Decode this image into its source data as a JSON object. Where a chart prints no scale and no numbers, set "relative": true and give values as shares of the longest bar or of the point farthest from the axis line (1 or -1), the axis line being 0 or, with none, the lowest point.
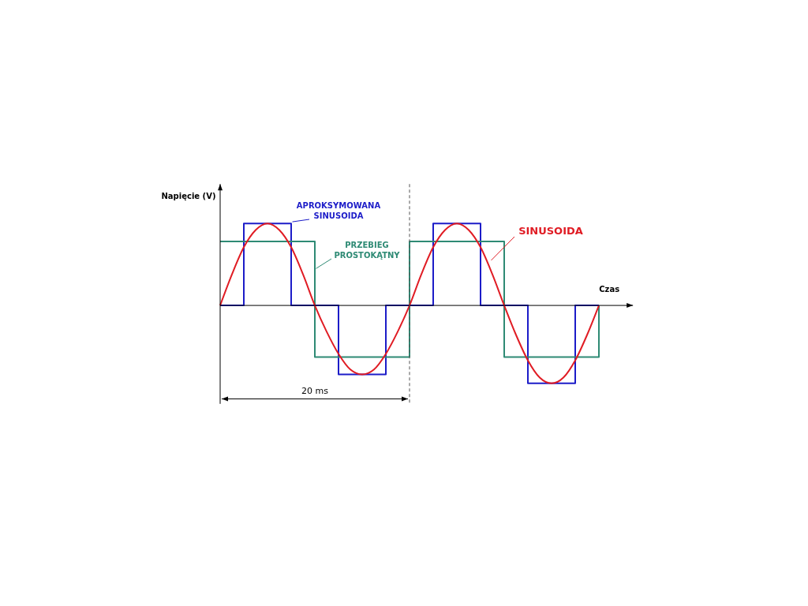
{
  "chart_data": {
    "type": "line",
    "relative": true,
    "xlabel": "Czas",
    "ylabel": "Napięcie (V)",
    "tick_labels": false,
    "grid": false,
    "legend": false,
    "marker": "none",
    "categories": [
      null,
      null,
      null,
      null,
      null,
      null,
      null,
      null,
      null,
      null,
      null,
      null,
      null,
      null,
      null,
      null,
      null,
      null,
      null,
      null,
      null,
      null,
      null,
      null,
      null,
      null,
      null,
      null,
      null,
      null,
      null,
      null,
      null
    ],
    "series": [
      {
        "name": "APROKSYMOWANA SINUSOIDA",
        "type": "step",
        "color": "#1c1cc8",
        "values": [
          0,
          0,
          1,
          1,
          1,
          1,
          0,
          0,
          0,
          0,
          -0.84,
          -0.84,
          -0.84,
          -0.84,
          0,
          0,
          0,
          0,
          1,
          1,
          1,
          1,
          0,
          0,
          0,
          0,
          -0.95,
          -0.95,
          -0.95,
          -0.95,
          0,
          0,
          0
        ]
      },
      {
        "name": "PRZEBIEG PROSTOKĄTNY",
        "type": "step",
        "color": "#2e8a74",
        "values": [
          0.78,
          0.78,
          0.78,
          0.78,
          0.78,
          0.78,
          0.78,
          0.78,
          -0.63,
          -0.63,
          -0.63,
          -0.63,
          -0.63,
          -0.63,
          -0.63,
          -0.63,
          0.78,
          0.78,
          0.78,
          0.78,
          0.78,
          0.78,
          0.78,
          0.78,
          -0.63,
          -0.63,
          -0.63,
          -0.63,
          -0.63,
          -0.63,
          -0.63,
          -0.63,
          0
        ]
      },
      {
        "name": "SINUSOIDA",
        "type": "line",
        "color": "#e01c24",
        "values": [
          0,
          0.38,
          0.71,
          0.92,
          1,
          0.92,
          0.71,
          0.38,
          0,
          -0.32,
          -0.59,
          -0.78,
          -0.84,
          -0.78,
          -0.59,
          -0.32,
          0,
          0.38,
          0.71,
          0.92,
          1,
          0.92,
          0.71,
          0.38,
          0,
          -0.36,
          -0.67,
          -0.88,
          -0.95,
          -0.88,
          -0.67,
          -0.36,
          0
        ]
      }
    ],
    "annotations": [
      "20 ms"
    ]
  }
}
